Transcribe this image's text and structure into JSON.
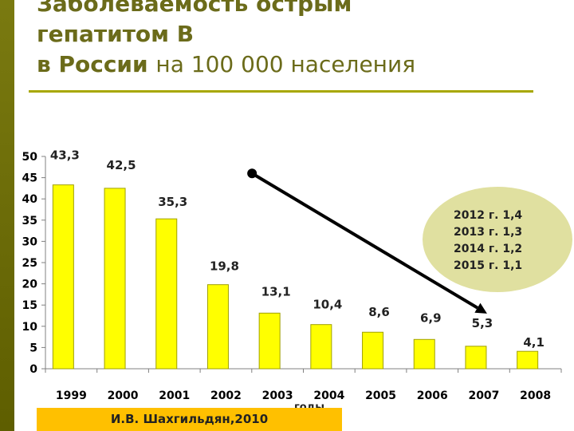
{
  "slide": {
    "title_line1": "Заболеваемость острым",
    "title_line2": "гепатитом В",
    "title_line3_bold": "в России",
    "title_line3_rest": "на 100 000 населения",
    "source_label": "И.В. Шахгильдян,2010"
  },
  "colors": {
    "bar_fill": "#ffff00",
    "bar_stroke": "#a0a000",
    "title": "#6b6b1a",
    "sidebar": "#6b6b00",
    "rule": "#a8a800",
    "bubble": "#e0e0a0",
    "source_bg": "#ffc000",
    "trend": "#000000"
  },
  "chart_data": {
    "type": "bar",
    "categories": [
      "1999",
      "2000",
      "2001",
      "2002",
      "2003",
      "2004",
      "2005",
      "2006",
      "2007",
      "2008"
    ],
    "values": [
      43.3,
      42.5,
      35.3,
      19.8,
      13.1,
      10.4,
      8.6,
      6.9,
      5.3,
      4.1
    ],
    "value_labels": [
      "43,3",
      "42,5",
      "35,3",
      "19,8",
      "13,1",
      "10,4",
      "8,6",
      "6,9",
      "5,3",
      "4,1"
    ],
    "xlabel": "годы",
    "ylabel": "",
    "ylim": [
      0,
      50
    ],
    "yticks": [
      0,
      5,
      10,
      15,
      20,
      25,
      30,
      35,
      40,
      45,
      50
    ],
    "grid": false,
    "legend": "none",
    "trend_arrow": {
      "from": {
        "x": "2003",
        "y": 46
      },
      "to": {
        "x": "2007",
        "y": 13
      }
    },
    "annotation_lines": [
      "2012 г. 1,4",
      "2013 г. 1,3",
      "2014 г. 1,2",
      "2015 г. 1,1"
    ]
  }
}
